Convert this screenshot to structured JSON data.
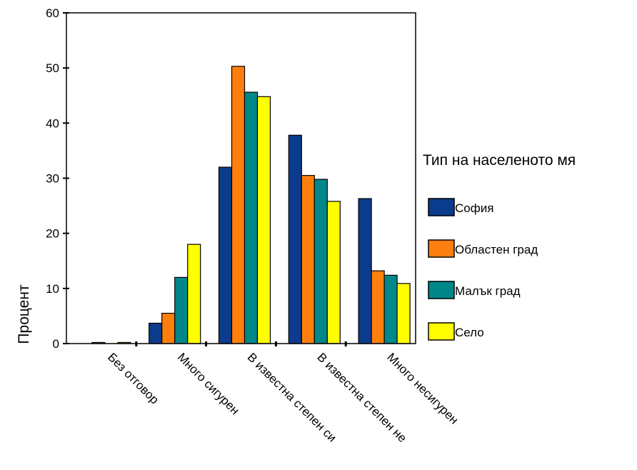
{
  "chart_data": {
    "type": "bar",
    "title": "",
    "xlabel": "",
    "ylabel": "Процент",
    "ylim": [
      0,
      60
    ],
    "yticks": [
      0,
      10,
      20,
      30,
      40,
      50,
      60
    ],
    "grid": false,
    "legend_position": "right",
    "legend_title": "Тип на населеното мя",
    "categories": [
      "Без отговор",
      "Много сигурен",
      "В известна степен си",
      "В известна степен не",
      "Много несигурен"
    ],
    "series": [
      {
        "name": "София",
        "color": "#0b3b8c",
        "values": [
          0,
          3.7,
          32,
          37.8,
          26.3
        ]
      },
      {
        "name": "Областен град",
        "color": "#ff7f0e",
        "values": [
          0.2,
          5.5,
          50.3,
          30.5,
          13.2
        ]
      },
      {
        "name": "Малък град",
        "color": "#00878a",
        "values": [
          0,
          12,
          45.6,
          29.8,
          12.4
        ]
      },
      {
        "name": "Село",
        "color": "#ffff00",
        "values": [
          0.2,
          18,
          44.8,
          25.8,
          10.9
        ]
      }
    ]
  }
}
